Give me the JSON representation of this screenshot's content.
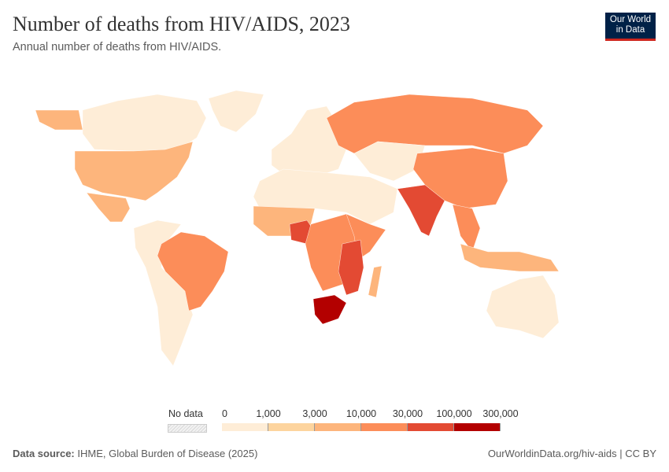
{
  "header": {
    "title": "Number of deaths from HIV/AIDS, 2023",
    "subtitle": "Annual number of deaths from HIV/AIDS.",
    "logo_line1": "Our World",
    "logo_line2": "in Data"
  },
  "legend": {
    "no_data_label": "No data",
    "bins": [
      "0",
      "1,000",
      "3,000",
      "10,000",
      "30,000",
      "100,000",
      "300,000"
    ],
    "colors": [
      "#feedd7",
      "#fdd49e",
      "#fdb57c",
      "#fc8d59",
      "#e34a33",
      "#b30000"
    ],
    "no_data_color": "#e8e8e8"
  },
  "map": {
    "projection": "Robinson",
    "regions": [
      {
        "name": "Canada",
        "bin": 0
      },
      {
        "name": "Greenland",
        "bin": 0
      },
      {
        "name": "United States",
        "bin": 2
      },
      {
        "name": "Mexico",
        "bin": 2
      },
      {
        "name": "Brazil",
        "bin": 3
      },
      {
        "name": "South America (other)",
        "bin": 0
      },
      {
        "name": "Europe",
        "bin": 0
      },
      {
        "name": "Russia",
        "bin": 3
      },
      {
        "name": "North Africa & Middle East",
        "bin": 0
      },
      {
        "name": "West Africa",
        "bin": 2
      },
      {
        "name": "Nigeria",
        "bin": 4
      },
      {
        "name": "Central Africa",
        "bin": 3
      },
      {
        "name": "East Africa",
        "bin": 3
      },
      {
        "name": "Mozambique",
        "bin": 4
      },
      {
        "name": "South Africa",
        "bin": 5
      },
      {
        "name": "India",
        "bin": 4
      },
      {
        "name": "China",
        "bin": 3
      },
      {
        "name": "Southeast Asia",
        "bin": 3
      },
      {
        "name": "Indonesia",
        "bin": 2
      },
      {
        "name": "Australia",
        "bin": 0
      },
      {
        "name": "Central Asia",
        "bin": 0
      },
      {
        "name": "Madagascar",
        "bin": 2
      }
    ]
  },
  "footer": {
    "source_label": "Data source:",
    "source": "IHME, Global Burden of Disease (2025)",
    "url": "OurWorldinData.org/hiv-aids | CC BY"
  }
}
